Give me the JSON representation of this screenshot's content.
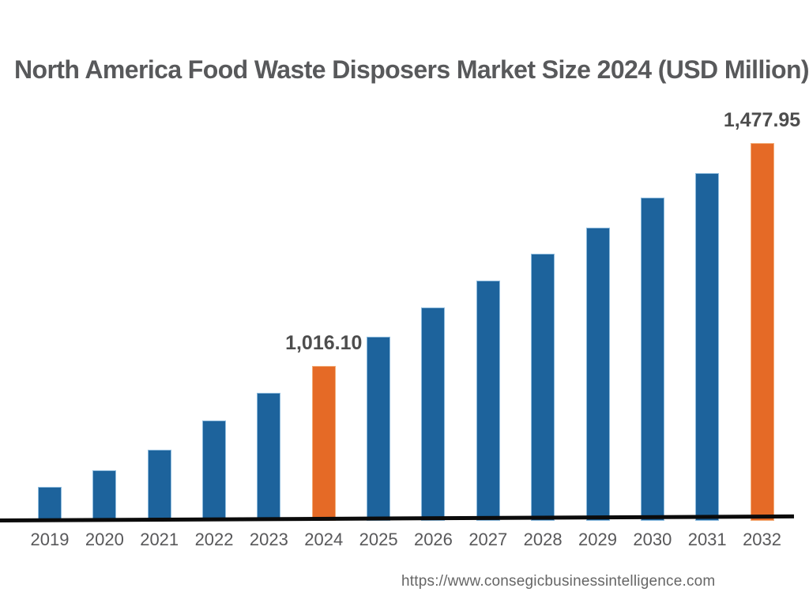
{
  "title": "North America Food Waste Disposers Market Size 2024 (USD Million)",
  "footer": {
    "url": "https://www.consegicbusinessintelligence.com"
  },
  "chart_data": {
    "type": "bar",
    "title": "North America Food Waste Disposers Market Size 2024 (USD Million)",
    "unit": "USD Million",
    "categories": [
      "2019",
      "2020",
      "2021",
      "2022",
      "2023",
      "2024",
      "2025",
      "2026",
      "2027",
      "2028",
      "2029",
      "2030",
      "2031",
      "2032"
    ],
    "values": [
      765.5,
      799.9,
      842.5,
      903.1,
      960.4,
      1016.1,
      1076.7,
      1137.3,
      1193.0,
      1248.6,
      1302.7,
      1365.0,
      1415.7,
      1477.95
    ],
    "data_labels": {
      "2024": "1,016.10",
      "2032": "1,477.95"
    },
    "highlight_categories": [
      "2024",
      "2032"
    ],
    "xlabel": "",
    "ylabel": "",
    "ylim": [
      700,
      1500
    ],
    "grid": false,
    "legend": false,
    "y_axis_visible": false,
    "x_axis_visible": true,
    "colors": {
      "bar_default": "#1D639C",
      "bar_default_edge": "#8FBCDE",
      "bar_highlight": "#E56A26",
      "bar_highlight_edge": "#F3AD79",
      "axis_line": "#0B0B0B",
      "title_text": "#58595B",
      "data_label_text": "#4D4D4D",
      "tick_text": "#58585A",
      "footer_text": "#666666"
    }
  }
}
